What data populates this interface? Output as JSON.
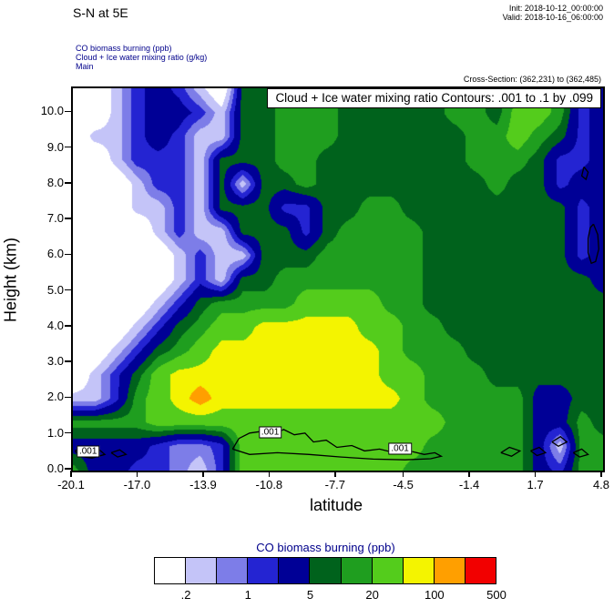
{
  "header": {
    "title": "S-N at 5E",
    "init": "Init: 2018-10-12_00:00:00",
    "valid": "Valid: 2018-10-16_06:00:00",
    "legend_lines": {
      "field": "CO biomass burning   (ppb)",
      "overlay": "Cloud + Ice water mixing ratio   (g/kg)",
      "domain": "Main"
    },
    "cross_section": "Cross-Section: (362,231) to (362,485)"
  },
  "colorbar": {
    "title": "CO biomass burning  (ppb)",
    "labels": [
      ".2",
      "1",
      "5",
      "20",
      "100",
      "500"
    ],
    "label_boundary_indices": [
      1,
      3,
      5,
      7,
      9,
      11
    ]
  },
  "chart_data": {
    "type": "heatmap",
    "title": "S-N at 5E",
    "annotation": "Cloud + Ice water mixing ratio Contours: .001 to .1 by .099",
    "xlabel": "latitude",
    "ylabel": "Height (km)",
    "field_name": "CO biomass burning (ppb)",
    "overlay_name": "Cloud + Ice water mixing ratio (g/kg)",
    "xlim": [
      -20.1,
      4.8
    ],
    "ylim": [
      0,
      10.7
    ],
    "x_ticks": [
      "-20.1",
      "-17.0",
      "-13.9",
      "-10.8",
      "-7.7",
      "-4.5",
      "-1.4",
      "1.7",
      "4.8"
    ],
    "x_tick_values": [
      -20.1,
      -17.0,
      -13.9,
      -10.8,
      -7.7,
      -4.5,
      -1.4,
      1.7,
      4.8
    ],
    "y_ticks": [
      "0.0",
      "1.0",
      "2.0",
      "3.0",
      "4.0",
      "5.0",
      "6.0",
      "7.0",
      "8.0",
      "9.0",
      "10.0"
    ],
    "y_tick_values": [
      0,
      1,
      2,
      3,
      4,
      5,
      6,
      7,
      8,
      9,
      10
    ],
    "levels": [
      0.1,
      0.2,
      0.5,
      1,
      2,
      5,
      10,
      20,
      50,
      100,
      200,
      500
    ],
    "colors": [
      "#ffffff",
      "#c4c4f8",
      "#7d7de8",
      "#2424d2",
      "#000096",
      "#00621c",
      "#1f9e1f",
      "#54cc1c",
      "#f4f400",
      "#ff9f00",
      "#f20000"
    ],
    "x": [
      -20.1,
      -19.1,
      -18.11,
      -17.11,
      -16.12,
      -15.12,
      -14.12,
      -13.13,
      -12.13,
      -11.14,
      -10.14,
      -9.14,
      -8.15,
      -7.15,
      -6.16,
      -5.16,
      -4.16,
      -3.17,
      -2.17,
      -1.18,
      -0.18,
      0.82,
      1.81,
      2.81,
      3.8,
      4.8
    ],
    "y": [
      10.7,
      10.03,
      9.36,
      8.69,
      8.03,
      7.36,
      6.69,
      6.02,
      5.35,
      4.68,
      4.01,
      3.34,
      2.68,
      2.01,
      1.34,
      0.67,
      0
    ],
    "values_ppb": [
      [
        0.05,
        0.05,
        0.3,
        1.5,
        3.2,
        1.5,
        0.3,
        0.05,
        7,
        7,
        14,
        14,
        14,
        7,
        7,
        7,
        7,
        7,
        14,
        14,
        7,
        14,
        32,
        14,
        1.5,
        3.2
      ],
      [
        0.05,
        0.05,
        0.3,
        1.5,
        3.2,
        3.2,
        1.5,
        0.3,
        7,
        7,
        14,
        14,
        14,
        7,
        7,
        7,
        7,
        7,
        14,
        14,
        7,
        32,
        32,
        14,
        1.5,
        3.2
      ],
      [
        0.05,
        0.3,
        0.3,
        1.5,
        3.2,
        1.5,
        0.3,
        0.3,
        7,
        7,
        14,
        14,
        14,
        7,
        7,
        7,
        7,
        7,
        7,
        14,
        14,
        32,
        14,
        7,
        1.5,
        3.2
      ],
      [
        0.05,
        0.05,
        0.3,
        1.5,
        1.5,
        1.5,
        0.3,
        7,
        7,
        7,
        14,
        14,
        7,
        7,
        7,
        7,
        7,
        7,
        7,
        14,
        14,
        14,
        7,
        1.5,
        1.5,
        3.2
      ],
      [
        0.05,
        0.05,
        0.05,
        0.3,
        1.5,
        1.5,
        0.3,
        7,
        0.3,
        7,
        7,
        14,
        7,
        7,
        7,
        7,
        7,
        7,
        7,
        7,
        14,
        7,
        7,
        1.5,
        3.2,
        3.2
      ],
      [
        0.05,
        0.05,
        0.05,
        0.3,
        0.3,
        1.5,
        0.3,
        7,
        7,
        7,
        1.5,
        1.5,
        7,
        7,
        14,
        14,
        7,
        7,
        7,
        7,
        7,
        7,
        7,
        7,
        1.5,
        3.2
      ],
      [
        0.05,
        0.05,
        0.05,
        0.05,
        0.3,
        1.5,
        0.3,
        0.3,
        7,
        7,
        7,
        1.5,
        7,
        14,
        14,
        14,
        14,
        7,
        7,
        7,
        7,
        7,
        7,
        7,
        1.5,
        3.2
      ],
      [
        0.05,
        0.05,
        0.05,
        0.05,
        0.05,
        0.3,
        1.5,
        0.3,
        0.3,
        7,
        7,
        7,
        14,
        14,
        14,
        14,
        14,
        7,
        7,
        7,
        7,
        7,
        7,
        7,
        1.5,
        3.2
      ],
      [
        0.05,
        0.05,
        0.05,
        0.05,
        0.05,
        0.3,
        1.5,
        0.3,
        7,
        7,
        14,
        14,
        14,
        14,
        14,
        14,
        14,
        7,
        7,
        7,
        7,
        7,
        7,
        7,
        7,
        3.2
      ],
      [
        0.05,
        0.05,
        0.05,
        0.05,
        0.3,
        1.5,
        7,
        14,
        14,
        14,
        14,
        32,
        32,
        32,
        32,
        14,
        14,
        7,
        7,
        7,
        7,
        7,
        7,
        7,
        7,
        7
      ],
      [
        0.05,
        0.05,
        0.05,
        0.3,
        1.5,
        7,
        14,
        32,
        32,
        70,
        70,
        70,
        70,
        70,
        32,
        32,
        14,
        14,
        7,
        7,
        7,
        7,
        7,
        7,
        7,
        7
      ],
      [
        0.05,
        0.05,
        0.3,
        1.5,
        7,
        14,
        32,
        70,
        70,
        70,
        70,
        70,
        70,
        70,
        70,
        32,
        14,
        14,
        14,
        7,
        7,
        7,
        7,
        7,
        7,
        7
      ],
      [
        0.05,
        0.3,
        1.5,
        7,
        32,
        70,
        70,
        70,
        70,
        70,
        70,
        70,
        70,
        70,
        70,
        32,
        32,
        14,
        14,
        14,
        7,
        7,
        7,
        7,
        7,
        7
      ],
      [
        0.3,
        0.3,
        1.5,
        14,
        32,
        70,
        150,
        70,
        70,
        70,
        70,
        70,
        70,
        70,
        70,
        70,
        32,
        14,
        14,
        14,
        14,
        14,
        3.2,
        3.2,
        7,
        7
      ],
      [
        14,
        14,
        14,
        14,
        32,
        32,
        32,
        32,
        32,
        32,
        32,
        32,
        32,
        32,
        32,
        32,
        32,
        32,
        14,
        14,
        14,
        14,
        3.2,
        3.2,
        14,
        7
      ],
      [
        3.2,
        3.2,
        3.2,
        3.2,
        1.5,
        0.7,
        0.7,
        1.5,
        32,
        32,
        32,
        32,
        32,
        32,
        32,
        32,
        32,
        14,
        14,
        14,
        14,
        14,
        3.2,
        0.3,
        14,
        14
      ],
      [
        14,
        3.2,
        3.2,
        1.5,
        1.5,
        0.7,
        0.3,
        1.5,
        32,
        32,
        32,
        32,
        32,
        32,
        32,
        32,
        14,
        14,
        14,
        14,
        14,
        14,
        3.2,
        1.5,
        14,
        14
      ]
    ],
    "cloud_contour_level": 0.001,
    "cloud_contours": [
      [
        [
          -12.6,
          0.6
        ],
        [
          -12.3,
          0.9
        ],
        [
          -11.8,
          1.05
        ],
        [
          -11.2,
          1.1
        ],
        [
          -10.7,
          1.0
        ],
        [
          -10.2,
          1.15
        ],
        [
          -9.7,
          1.0
        ],
        [
          -9.2,
          1.05
        ],
        [
          -8.8,
          0.8
        ],
        [
          -8.2,
          0.85
        ],
        [
          -7.7,
          0.65
        ],
        [
          -7.0,
          0.7
        ],
        [
          -6.4,
          0.55
        ],
        [
          -5.7,
          0.6
        ],
        [
          -5.0,
          0.5
        ],
        [
          -4.3,
          0.55
        ],
        [
          -3.6,
          0.45
        ],
        [
          -3.1,
          0.5
        ],
        [
          -2.8,
          0.4
        ],
        [
          -3.3,
          0.33
        ],
        [
          -4.5,
          0.3
        ],
        [
          -6.0,
          0.32
        ],
        [
          -7.5,
          0.38
        ],
        [
          -9.0,
          0.45
        ],
        [
          -10.5,
          0.5
        ],
        [
          -11.8,
          0.45
        ],
        [
          -12.6,
          0.6
        ]
      ],
      [
        [
          -20.0,
          0.55
        ],
        [
          -19.5,
          0.68
        ],
        [
          -18.9,
          0.6
        ],
        [
          -18.6,
          0.45
        ],
        [
          -19.2,
          0.35
        ],
        [
          -19.8,
          0.4
        ],
        [
          -20.0,
          0.55
        ]
      ],
      [
        [
          -18.3,
          0.5
        ],
        [
          -17.9,
          0.58
        ],
        [
          -17.6,
          0.45
        ],
        [
          -18.0,
          0.38
        ],
        [
          -18.3,
          0.5
        ]
      ],
      [
        [
          0.0,
          0.5
        ],
        [
          0.4,
          0.65
        ],
        [
          0.9,
          0.55
        ],
        [
          0.5,
          0.4
        ],
        [
          0.0,
          0.5
        ]
      ],
      [
        [
          1.4,
          0.55
        ],
        [
          1.8,
          0.65
        ],
        [
          2.1,
          0.5
        ],
        [
          1.7,
          0.42
        ],
        [
          1.4,
          0.55
        ]
      ],
      [
        [
          2.4,
          0.8
        ],
        [
          2.8,
          0.95
        ],
        [
          3.1,
          0.8
        ],
        [
          2.7,
          0.68
        ],
        [
          2.4,
          0.8
        ]
      ],
      [
        [
          3.4,
          0.5
        ],
        [
          3.8,
          0.6
        ],
        [
          4.1,
          0.45
        ],
        [
          3.7,
          0.38
        ],
        [
          3.4,
          0.5
        ]
      ],
      [
        [
          4.35,
          6.9
        ],
        [
          4.55,
          6.6
        ],
        [
          4.6,
          6.2
        ],
        [
          4.45,
          5.85
        ],
        [
          4.25,
          5.8
        ],
        [
          4.1,
          6.1
        ],
        [
          4.1,
          6.5
        ],
        [
          4.2,
          6.8
        ],
        [
          4.35,
          6.9
        ]
      ],
      [
        [
          3.9,
          8.5
        ],
        [
          4.1,
          8.35
        ],
        [
          4.0,
          8.15
        ],
        [
          3.8,
          8.25
        ],
        [
          3.9,
          8.5
        ]
      ]
    ],
    "contour_labels": [
      {
        "lat": -19.3,
        "h": 0.48,
        "text": ".001"
      },
      {
        "lat": -10.75,
        "h": 1.02,
        "text": ".001"
      },
      {
        "lat": -4.65,
        "h": 0.55,
        "text": ".001"
      }
    ]
  }
}
